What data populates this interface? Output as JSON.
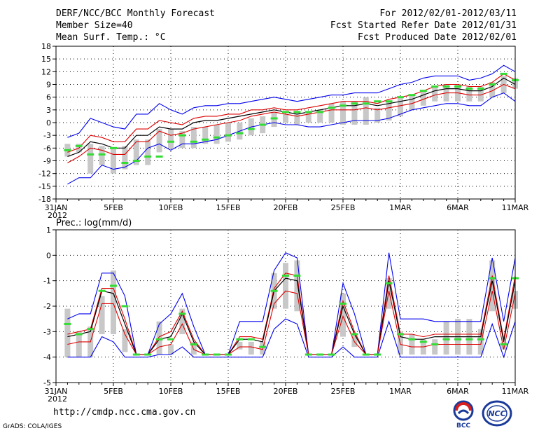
{
  "header": {
    "title": "DERF/NCC/BCC Monthly Forecast",
    "member_size": "Member Size=40",
    "variable": "Mean Surf. Temp.: °C",
    "period": "For 2012/02/01-2012/03/11",
    "started": "Fcst Started Refer Date 2012/01/31",
    "produced": "Fcst Produced Date 2012/02/01"
  },
  "footer": {
    "url": "http://cmdp.ncc.cma.gov.cn",
    "grads": "GrADS: COLA/IGES",
    "logo_bcc": "BCC",
    "logo_ncc": "NCC"
  },
  "colors": {
    "envelope": "#0000ee",
    "spread": "#dd0000",
    "mean": "#000000",
    "median": "#33dd33",
    "box": "#c8c8c8",
    "grid": "#000000"
  },
  "chart_data": [
    {
      "type": "line",
      "title": "Mean Surf. Temp.: °C",
      "ylim": [
        -18,
        18
      ],
      "yticks": [
        -18,
        -15,
        -12,
        -9,
        -6,
        -3,
        0,
        3,
        6,
        9,
        12,
        15,
        18
      ],
      "xtick_labels": [
        "31JAN",
        "5FEB",
        "10FEB",
        "15FEB",
        "20FEB",
        "25FEB",
        "1MAR",
        "6MAR",
        "11MAR"
      ],
      "xtick_days": [
        0,
        5,
        10,
        15,
        20,
        25,
        30,
        35,
        40
      ],
      "x_year_label": "2012",
      "x": [
        1,
        2,
        3,
        4,
        5,
        6,
        7,
        8,
        9,
        10,
        11,
        12,
        13,
        14,
        15,
        16,
        17,
        18,
        19,
        20,
        21,
        22,
        23,
        24,
        25,
        26,
        27,
        28,
        29,
        30,
        31,
        32,
        33,
        34,
        35,
        36,
        37,
        38,
        39,
        40
      ],
      "series": [
        {
          "name": "max",
          "values": [
            -3.5,
            -2.5,
            1,
            0,
            -1,
            -1.5,
            2,
            2,
            4.5,
            3,
            2,
            3.5,
            4,
            4,
            4.5,
            4.5,
            5,
            5.5,
            6,
            5.5,
            5,
            5.5,
            6,
            6.5,
            6.5,
            7,
            7,
            7,
            8,
            9,
            9.5,
            10.5,
            11,
            11,
            11,
            10,
            10.5,
            11.5,
            13.5,
            12
          ]
        },
        {
          "name": "upper",
          "values": [
            -7,
            -6,
            -3,
            -3.5,
            -4.5,
            -4.5,
            -1.5,
            -1.5,
            0.5,
            0,
            -0.5,
            1,
            1.5,
            1.5,
            2,
            2,
            3,
            3,
            3.5,
            3,
            3,
            3.5,
            4,
            4.5,
            5,
            5,
            5,
            4.5,
            5.5,
            6,
            6.5,
            7.5,
            8.5,
            9,
            9,
            8.5,
            8.5,
            9.5,
            11.5,
            10
          ]
        },
        {
          "name": "mean",
          "values": [
            -8,
            -7,
            -4.5,
            -5,
            -6,
            -6,
            -3,
            -3,
            -1,
            -1.5,
            -1.5,
            0,
            0.5,
            0.5,
            1,
            1.5,
            2,
            2.5,
            3,
            2.5,
            2,
            2.5,
            3,
            3.5,
            4,
            4,
            4.5,
            4,
            4.5,
            5,
            5.5,
            6.5,
            7.5,
            8,
            8,
            7.5,
            7.5,
            8.5,
            10.5,
            9
          ]
        },
        {
          "name": "lower",
          "values": [
            -9.5,
            -8,
            -6,
            -6.5,
            -7.5,
            -7.5,
            -4.5,
            -4.5,
            -2,
            -3,
            -2.5,
            -1.5,
            -1,
            -0.5,
            0,
            0.5,
            1.5,
            2,
            2.5,
            2,
            1.5,
            2,
            2.5,
            3,
            3,
            3,
            3.5,
            3,
            3.5,
            4,
            4.5,
            5.5,
            6.5,
            7,
            7,
            6.5,
            6.5,
            7.5,
            9,
            8
          ]
        },
        {
          "name": "min",
          "values": [
            -14.5,
            -13,
            -13,
            -10,
            -11,
            -10.5,
            -9,
            -6,
            -5,
            -6.5,
            -5,
            -5,
            -4.5,
            -4,
            -3,
            -2,
            -1,
            -0.5,
            0,
            -0.5,
            -0.5,
            -1,
            -1,
            -0.5,
            0,
            0.5,
            0.5,
            0.5,
            1,
            2,
            3,
            3.5,
            4,
            4.5,
            4.5,
            4,
            4,
            6,
            7,
            5
          ]
        }
      ],
      "box_upper": [
        -5,
        -5,
        -5,
        -5.5,
        -6,
        -5.5,
        -4,
        -4,
        -1.5,
        -1.5,
        -2,
        -1,
        -1,
        -0.5,
        0,
        0,
        1,
        1.5,
        2.5,
        2,
        2,
        2.5,
        3,
        4.5,
        5,
        5,
        6,
        3.5,
        5,
        6,
        6.5,
        7.5,
        8.5,
        9,
        9,
        8.5,
        8.5,
        9.5,
        11,
        10.5
      ],
      "box_lower": [
        -8,
        -7,
        -12,
        -10,
        -12,
        -11,
        -10,
        -10,
        -7,
        -6,
        -6,
        -6,
        -5,
        -5,
        -4.5,
        -4,
        -3,
        -2.5,
        -1,
        0,
        -0.5,
        0,
        0,
        0,
        -0.5,
        -0.5,
        -0.5,
        0,
        0.5,
        1.5,
        3,
        4,
        5,
        5,
        5,
        5,
        5,
        6,
        7,
        8
      ],
      "median": [
        -6.5,
        -5.5,
        -7.5,
        -7.5,
        -6,
        -9.5,
        -9,
        -8,
        -8,
        -4.5,
        -3,
        -4.5,
        -4,
        -3.5,
        -3,
        -2.5,
        -1.5,
        -0.5,
        1,
        2.5,
        2.5,
        2.5,
        2.5,
        3.5,
        4,
        4.5,
        4.5,
        5,
        5,
        6,
        6.5,
        7.5,
        8.5,
        8.5,
        8.5,
        8,
        8,
        9,
        11.5,
        10
      ]
    },
    {
      "type": "line",
      "title": "Prec.: log(mm/d)",
      "ylim": [
        -5,
        1
      ],
      "yticks": [
        -5,
        -4,
        -3,
        -2,
        -1,
        0,
        1
      ],
      "xtick_labels": [
        "31JAN",
        "5FEB",
        "10FEB",
        "15FEB",
        "20FEB",
        "25FEB",
        "1MAR",
        "6MAR",
        "11MAR"
      ],
      "xtick_days": [
        0,
        5,
        10,
        15,
        20,
        25,
        30,
        35,
        40
      ],
      "x_year_label": "2012",
      "x": [
        1,
        2,
        3,
        4,
        5,
        6,
        7,
        8,
        9,
        10,
        11,
        12,
        13,
        14,
        15,
        16,
        17,
        18,
        19,
        20,
        21,
        22,
        23,
        24,
        25,
        26,
        27,
        28,
        29,
        30,
        31,
        32,
        33,
        34,
        35,
        36,
        37,
        38,
        39,
        40
      ],
      "series": [
        {
          "name": "max",
          "values": [
            -2.5,
            -2.3,
            -2.3,
            -0.7,
            -0.7,
            -1.6,
            -3.9,
            -3.9,
            -2.7,
            -2.3,
            -1.5,
            -2.8,
            -3.9,
            -3.9,
            -3.9,
            -2.6,
            -2.6,
            -2.6,
            -0.6,
            0.1,
            -0.1,
            -3.9,
            -3.9,
            -3.9,
            -1.1,
            -2.3,
            -3.9,
            -3.9,
            0.1,
            -2.5,
            -2.5,
            -2.5,
            -2.6,
            -2.6,
            -2.6,
            -2.6,
            -2.6,
            -0.1,
            -2.6,
            -0.1
          ]
        },
        {
          "name": "upper",
          "values": [
            -3.1,
            -3,
            -2.9,
            -1.3,
            -1.3,
            -2.5,
            -3.9,
            -3.9,
            -3.2,
            -3,
            -2.2,
            -3.3,
            -3.9,
            -3.9,
            -3.9,
            -3.2,
            -3.2,
            -3.3,
            -1.3,
            -0.7,
            -0.8,
            -3.9,
            -3.9,
            -3.9,
            -1.8,
            -3,
            -3.9,
            -3.9,
            -0.8,
            -3.1,
            -3.1,
            -3.2,
            -3.1,
            -3.1,
            -3.1,
            -3.1,
            -3.1,
            -0.8,
            -3.3,
            -0.8
          ]
        },
        {
          "name": "mean",
          "values": [
            -3.2,
            -3.1,
            -3,
            -1.4,
            -1.5,
            -2.7,
            -3.9,
            -3.9,
            -3.3,
            -3.2,
            -2.3,
            -3.4,
            -3.9,
            -3.9,
            -3.9,
            -3.3,
            -3.3,
            -3.4,
            -1.4,
            -0.9,
            -1,
            -3.9,
            -3.9,
            -3.9,
            -2,
            -3.1,
            -3.9,
            -3.9,
            -1,
            -3.2,
            -3.3,
            -3.3,
            -3.2,
            -3.2,
            -3.2,
            -3.2,
            -3.2,
            -1,
            -3.4,
            -1
          ]
        },
        {
          "name": "lower",
          "values": [
            -3.5,
            -3.4,
            -3.4,
            -1.9,
            -1.9,
            -3.1,
            -3.9,
            -3.9,
            -3.6,
            -3.5,
            -2.7,
            -3.7,
            -3.9,
            -3.9,
            -3.9,
            -3.6,
            -3.6,
            -3.7,
            -1.9,
            -1.4,
            -1.5,
            -3.9,
            -3.9,
            -3.9,
            -2.4,
            -3.4,
            -3.9,
            -3.9,
            -1.4,
            -3.5,
            -3.6,
            -3.6,
            -3.5,
            -3.5,
            -3.5,
            -3.5,
            -3.5,
            -1.4,
            -3.7,
            -1.5
          ]
        },
        {
          "name": "min",
          "values": [
            -4,
            -4,
            -4,
            -3.2,
            -3.4,
            -4,
            -4,
            -4,
            -3.9,
            -3.9,
            -3.6,
            -4,
            -4,
            -4,
            -4,
            -4,
            -4,
            -4,
            -2.9,
            -2.5,
            -2.7,
            -4,
            -4,
            -4,
            -3.6,
            -4,
            -4,
            -4,
            -2.6,
            -4,
            -4,
            -4,
            -4,
            -4,
            -4,
            -4,
            -4,
            -2.7,
            -4,
            -2.6
          ]
        }
      ],
      "box_upper": [
        -2.1,
        -3,
        -2.8,
        -1.6,
        -0.6,
        -2.9,
        -3.9,
        -3.9,
        -2.6,
        -3.5,
        -2.1,
        -3.4,
        -3.9,
        -3.9,
        -3.9,
        -3.4,
        -3.4,
        -3.4,
        -0.7,
        -0.3,
        -0.2,
        -3.9,
        -3.9,
        -3.9,
        -1.5,
        -3.1,
        -3.9,
        -3.9,
        -0.9,
        -3,
        -3.1,
        -3.3,
        -3.3,
        -2.6,
        -2.5,
        -2.5,
        -2.9,
        -0.2,
        -3.4,
        -1.4
      ],
      "box_lower": [
        -4,
        -4,
        -4,
        -3.1,
        -3.1,
        -3.8,
        -3.9,
        -3.9,
        -3.9,
        -3.9,
        -3.1,
        -3.9,
        -3.9,
        -3.9,
        -3.9,
        -3.7,
        -3.9,
        -3.9,
        -2.1,
        -2.1,
        -2.2,
        -3.9,
        -3.9,
        -3.9,
        -3.2,
        -3.6,
        -3.9,
        -3.9,
        -2.1,
        -3.9,
        -3.9,
        -3.9,
        -3.9,
        -3.9,
        -3.9,
        -3.9,
        -3.9,
        -2.2,
        -3.7,
        -2.1
      ],
      "median": [
        -2.7,
        -3.1,
        -2.9,
        -1.4,
        -1.2,
        -2,
        -3.9,
        -3.9,
        -3.3,
        -3.3,
        -2.3,
        -3.5,
        -3.9,
        -3.9,
        -3.9,
        -3.3,
        -3.3,
        -3.6,
        -1.4,
        -0.8,
        -0.8,
        -3.9,
        -3.9,
        -3.9,
        -1.9,
        -3.1,
        -3.9,
        -3.9,
        -1.1,
        -3.1,
        -3.3,
        -3.4,
        -3.5,
        -3.3,
        -3.3,
        -3.3,
        -3.3,
        -0.9,
        -3.5,
        -0.9
      ]
    }
  ]
}
